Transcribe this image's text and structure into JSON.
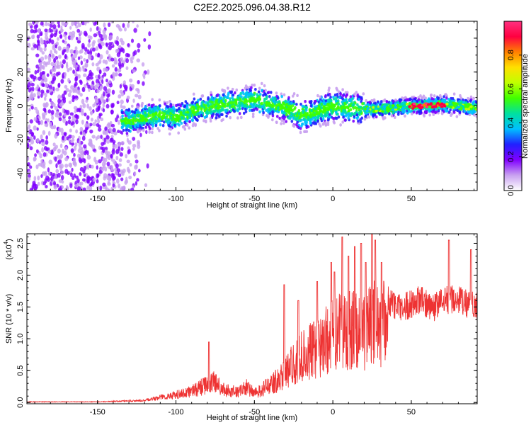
{
  "title": "C2E2.2025.096.04.38.R12",
  "chart_data": [
    {
      "type": "heatmap",
      "name": "spectrogram",
      "xlabel": "Height of straight line (km)",
      "ylabel": "Frequency (Hz)",
      "xlim": [
        -195,
        92
      ],
      "ylim": [
        -50,
        50
      ],
      "xticks": [
        -150,
        -100,
        -50,
        0,
        50
      ],
      "xtick_labels": [
        "-150",
        "-100",
        "-50",
        "0",
        "50"
      ],
      "yticks": [
        -40,
        -20,
        0,
        20,
        40
      ],
      "ytick_labels": [
        "-40",
        "-20",
        "0",
        "20",
        "40"
      ],
      "colorbar": {
        "label": "Normalized spectral amplitude",
        "range": [
          0,
          1
        ],
        "ticks": [
          0.0,
          0.2,
          0.4,
          0.6,
          0.8
        ],
        "tick_labels": [
          "0.0",
          "0.2",
          "0.4",
          "0.6",
          "0.8"
        ],
        "colors": [
          "#ffffff",
          "#c8a0f0",
          "#8000ff",
          "#2020ff",
          "#00c0ff",
          "#00e0a0",
          "#40ff00",
          "#c0ff00",
          "#ffe000",
          "#ff8000",
          "#ff0040",
          "#ff3080"
        ]
      },
      "band_center": [
        [
          -195,
          -8
        ],
        [
          -175,
          -8
        ],
        [
          -150,
          -10
        ],
        [
          -130,
          -9
        ],
        [
          -110,
          -5
        ],
        [
          -100,
          -7
        ],
        [
          -90,
          -3
        ],
        [
          -75,
          0
        ],
        [
          -60,
          2
        ],
        [
          -50,
          4
        ],
        [
          -40,
          1
        ],
        [
          -30,
          -1
        ],
        [
          -20,
          -6
        ],
        [
          -10,
          -3
        ],
        [
          0,
          0
        ],
        [
          10,
          -1
        ],
        [
          20,
          -2
        ],
        [
          30,
          -2
        ],
        [
          40,
          -1
        ],
        [
          50,
          0
        ],
        [
          60,
          0
        ],
        [
          70,
          1
        ],
        [
          80,
          0
        ],
        [
          92,
          -1
        ]
      ],
      "grid": false
    },
    {
      "type": "line",
      "name": "snr",
      "xlabel": "Height of straight line (km)",
      "ylabel": "SNR (10 * v/v)",
      "yscale_label": "(x10",
      "yscale_exponent": "4",
      "xlim": [
        -195,
        92
      ],
      "ylim": [
        -0.02,
        2.65
      ],
      "xticks": [
        -150,
        -100,
        -50,
        0,
        50
      ],
      "xtick_labels": [
        "-150",
        "-100",
        "-50",
        "0",
        "50"
      ],
      "yticks": [
        0.0,
        0.5,
        1.0,
        1.5,
        2.0,
        2.5
      ],
      "ytick_labels": [
        "0.0",
        "0.5",
        "1.0",
        "1.5",
        "2.0",
        "2.5"
      ],
      "color": "#ee3333",
      "envelope": [
        [
          -195,
          0.01
        ],
        [
          -150,
          0.01
        ],
        [
          -120,
          0.03
        ],
        [
          -110,
          0.1
        ],
        [
          -100,
          0.15
        ],
        [
          -90,
          0.22
        ],
        [
          -80,
          0.35
        ],
        [
          -75,
          0.4
        ],
        [
          -70,
          0.25
        ],
        [
          -60,
          0.2
        ],
        [
          -55,
          0.3
        ],
        [
          -50,
          0.18
        ],
        [
          -45,
          0.25
        ],
        [
          -40,
          0.35
        ],
        [
          -35,
          0.45
        ],
        [
          -30,
          0.6
        ],
        [
          -25,
          0.75
        ],
        [
          -20,
          0.9
        ],
        [
          -15,
          1.0
        ],
        [
          -10,
          1.05
        ],
        [
          -5,
          1.2
        ],
        [
          0,
          1.3
        ],
        [
          5,
          1.4
        ],
        [
          10,
          1.45
        ],
        [
          15,
          1.45
        ],
        [
          20,
          1.4
        ],
        [
          25,
          1.6
        ],
        [
          30,
          1.55
        ],
        [
          35,
          1.6
        ],
        [
          40,
          1.5
        ],
        [
          45,
          1.5
        ],
        [
          50,
          1.55
        ],
        [
          55,
          1.6
        ],
        [
          60,
          1.55
        ],
        [
          65,
          1.5
        ],
        [
          70,
          1.6
        ],
        [
          75,
          1.65
        ],
        [
          80,
          1.6
        ],
        [
          85,
          1.55
        ],
        [
          92,
          1.5
        ]
      ],
      "peaks": [
        [
          -79,
          0.95
        ],
        [
          -31,
          1.85
        ],
        [
          -22,
          1.6
        ],
        [
          -10,
          1.9
        ],
        [
          -1,
          2.2
        ],
        [
          1,
          2.05
        ],
        [
          6,
          2.6
        ],
        [
          10,
          2.3
        ],
        [
          14,
          2.45
        ],
        [
          18,
          2.5
        ],
        [
          21,
          2.2
        ],
        [
          25,
          2.65
        ],
        [
          27,
          2.55
        ],
        [
          31,
          2.2
        ],
        [
          74,
          2.55
        ],
        [
          88,
          2.4
        ]
      ],
      "grid": false
    }
  ]
}
